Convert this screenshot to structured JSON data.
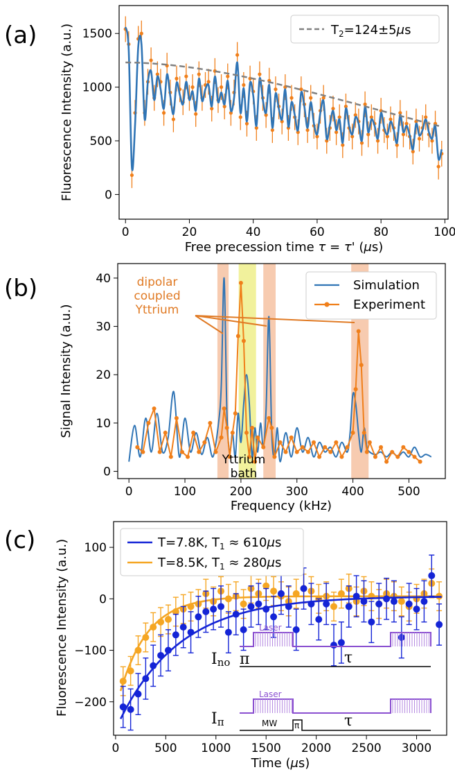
{
  "chart_data": [
    {
      "panel": "(a)",
      "type": "scatter",
      "xlabel": "Free precession time τ = τ' (μs)",
      "ylabel": "Fluorescence Intensity (a.u.)",
      "xlim": [
        -2,
        101
      ],
      "ylim": [
        -230,
        1760
      ],
      "xticks": [
        0,
        20,
        40,
        60,
        80,
        100
      ],
      "yticks": [
        0,
        500,
        1000,
        1500
      ],
      "legend": "top-right",
      "series": [
        {
          "name": "T2=124±5μs",
          "style": "dashed",
          "color": "#808080",
          "model": {
            "A": 1230,
            "T2": 124,
            "n": 1.8
          }
        },
        {
          "name": "",
          "style": "line",
          "color": "#2f74b5",
          "x": [
            0,
            1,
            2,
            3,
            4,
            5,
            6,
            7,
            8,
            9,
            10,
            11,
            12,
            13,
            14,
            15,
            16,
            17,
            18,
            19,
            20,
            21,
            22,
            23,
            24,
            25,
            26,
            27,
            28,
            29,
            30,
            31,
            32,
            33,
            34,
            35,
            36,
            37,
            38,
            39,
            40,
            41,
            42,
            43,
            44,
            45,
            46,
            47,
            48,
            49,
            50,
            51,
            52,
            53,
            54,
            55,
            56,
            57,
            58,
            59,
            60,
            61,
            62,
            63,
            64,
            65,
            66,
            67,
            68,
            69,
            70,
            71,
            72,
            73,
            74,
            75,
            76,
            77,
            78,
            79,
            80,
            81,
            82,
            83,
            84,
            85,
            86,
            87,
            88,
            89,
            90,
            91,
            92,
            93,
            94,
            95,
            96,
            97,
            98,
            99
          ],
          "y": [
            1560,
            1350,
            250,
            650,
            1380,
            1400,
            700,
            1050,
            1150,
            880,
            1100,
            980,
            800,
            1120,
            920,
            750,
            1040,
            930,
            840,
            1050,
            880,
            960,
            780,
            1080,
            870,
            980,
            1020,
            820,
            1100,
            860,
            950,
            840,
            1060,
            780,
            900,
            1230,
            760,
            990,
            680,
            1040,
            920,
            640,
            1080,
            880,
            760,
            1020,
            620,
            940,
            800,
            700,
            980,
            630,
            860,
            740,
            600,
            950,
            820,
            620,
            860,
            660,
            560,
            760,
            870,
            520,
            650,
            780,
            600,
            700,
            480,
            800,
            640,
            560,
            720,
            660,
            500,
            820,
            580,
            700,
            640,
            520,
            760,
            620,
            560,
            680,
            600,
            480,
            740,
            580,
            640,
            550,
            420,
            660,
            550,
            600,
            700,
            580,
            520,
            640,
            330,
            420
          ]
        }
      ],
      "points": {
        "name": "",
        "color": "#f07f1a",
        "x": [
          0,
          1,
          2,
          3,
          4,
          5,
          6,
          7,
          8,
          9,
          10,
          11,
          12,
          13,
          14,
          15,
          16,
          17,
          18,
          19,
          20,
          21,
          22,
          23,
          24,
          25,
          26,
          27,
          28,
          29,
          30,
          31,
          32,
          33,
          34,
          35,
          36,
          37,
          38,
          39,
          40,
          41,
          42,
          43,
          44,
          45,
          46,
          47,
          48,
          49,
          50,
          51,
          52,
          53,
          54,
          55,
          56,
          57,
          58,
          59,
          60,
          61,
          62,
          63,
          64,
          65,
          66,
          67,
          68,
          69,
          70,
          71,
          72,
          73,
          74,
          75,
          76,
          77,
          78,
          79,
          80,
          81,
          82,
          83,
          84,
          85,
          86,
          87,
          88,
          89,
          90,
          91,
          92,
          93,
          94,
          95,
          96,
          97,
          98,
          99
        ],
        "y": [
          1540,
          1400,
          180,
          760,
          1450,
          1500,
          760,
          1050,
          1250,
          900,
          1120,
          1050,
          760,
          1200,
          950,
          700,
          1080,
          980,
          860,
          1100,
          900,
          1000,
          750,
          1120,
          900,
          1020,
          1050,
          800,
          1150,
          880,
          1000,
          820,
          1100,
          760,
          950,
          1300,
          720,
          1020,
          660,
          1080,
          960,
          620,
          1120,
          900,
          740,
          1060,
          600,
          980,
          820,
          680,
          1000,
          620,
          900,
          720,
          580,
          980,
          840,
          600,
          900,
          640,
          540,
          780,
          900,
          500,
          620,
          800,
          580,
          720,
          460,
          820,
          620,
          540,
          740,
          680,
          480,
          840,
          560,
          720,
          660,
          500,
          780,
          600,
          540,
          700,
          620,
          460,
          760,
          560,
          660,
          540,
          400,
          680,
          520,
          620,
          720,
          560,
          500,
          660,
          260,
          380
        ],
        "yerr": 120
      }
    },
    {
      "panel": "(b)",
      "type": "line",
      "xlabel": "Frequency (kHz)",
      "ylabel": "Signal Intensity (a.u.)",
      "xlim": [
        -20,
        565
      ],
      "ylim": [
        -1.5,
        43
      ],
      "xticks": [
        0,
        100,
        200,
        300,
        400,
        500
      ],
      "yticks": [
        0,
        10,
        20,
        30,
        40
      ],
      "legend": "top-right",
      "bands": [
        {
          "x0": 158,
          "x1": 178,
          "color": "#f0a070"
        },
        {
          "x0": 196,
          "x1": 227,
          "color": "#e6e64a"
        },
        {
          "x0": 240,
          "x1": 262,
          "color": "#f0a070"
        },
        {
          "x0": 397,
          "x1": 428,
          "color": "#f0a070"
        }
      ],
      "annotations": [
        "dipolar",
        "coupled",
        "Yttrium",
        "Yttrium",
        "bath"
      ],
      "series": [
        {
          "name": "Simulation",
          "color": "#2f74b5",
          "x": [
            0,
            10,
            20,
            30,
            40,
            50,
            60,
            70,
            80,
            90,
            100,
            110,
            120,
            130,
            140,
            150,
            160,
            165,
            170,
            175,
            180,
            185,
            190,
            195,
            200,
            205,
            210,
            215,
            220,
            225,
            230,
            235,
            240,
            245,
            250,
            255,
            260,
            265,
            270,
            280,
            290,
            300,
            310,
            320,
            330,
            340,
            350,
            360,
            370,
            380,
            390,
            395,
            400,
            405,
            410,
            415,
            420,
            425,
            430,
            440,
            450,
            460,
            470,
            480,
            490,
            500,
            510,
            520,
            530,
            540
          ],
          "y": [
            2,
            9.5,
            3,
            11,
            4,
            12,
            4,
            7,
            16.5,
            3,
            11,
            4,
            8,
            3.5,
            7,
            3,
            10,
            18,
            40,
            12,
            4,
            8,
            3,
            12,
            6,
            14,
            20,
            14,
            3,
            9,
            4,
            10,
            5,
            13,
            32,
            8,
            3,
            9,
            2,
            8,
            3,
            9,
            4,
            7,
            3,
            6,
            4,
            5,
            3,
            6,
            4,
            8,
            16,
            14,
            8,
            4,
            9,
            5,
            4,
            3.5,
            4,
            3,
            4,
            3,
            4,
            3,
            5,
            3,
            3.5,
            3
          ]
        },
        {
          "name": "Experiment",
          "color": "#f07f1a",
          "x": [
            15,
            25,
            35,
            45,
            55,
            65,
            75,
            85,
            95,
            105,
            115,
            125,
            135,
            145,
            155,
            165,
            170,
            175,
            180,
            185,
            190,
            195,
            200,
            205,
            210,
            215,
            220,
            225,
            230,
            240,
            250,
            255,
            260,
            270,
            280,
            290,
            300,
            310,
            320,
            330,
            340,
            350,
            360,
            370,
            380,
            390,
            400,
            405,
            410,
            415,
            420,
            425,
            430,
            440,
            450,
            460,
            470,
            480,
            490,
            500,
            510,
            520
          ],
          "y": [
            5,
            4,
            10,
            13,
            4,
            8,
            3,
            11,
            4,
            3,
            8,
            4,
            6,
            10,
            4,
            7,
            13,
            9,
            3,
            8,
            12,
            28,
            39,
            27,
            8,
            3,
            9,
            2,
            7,
            5,
            11,
            9,
            3,
            6,
            4,
            7,
            4,
            5,
            4,
            6,
            3,
            5,
            4,
            6,
            3,
            5,
            8,
            17,
            29,
            22,
            8,
            4,
            6,
            3,
            5,
            2,
            4,
            3,
            5,
            4,
            3,
            2
          ]
        }
      ]
    },
    {
      "panel": "(c)",
      "type": "scatter",
      "xlabel": "Time (μs)",
      "ylabel": "Fluorescence Intensity (a.u.)",
      "xlim": [
        -20,
        3300
      ],
      "ylim": [
        -265,
        150
      ],
      "xticks": [
        0,
        500,
        1000,
        1500,
        2000,
        2500,
        3000
      ],
      "yticks": [
        -200,
        -100,
        0,
        100
      ],
      "legend": "top-left",
      "series": [
        {
          "name": "T=7.8K, T1≈610μs",
          "color": "#1424d6",
          "T1": 610,
          "A": -235,
          "off": 5,
          "x": [
            75,
            150,
            225,
            300,
            375,
            450,
            525,
            600,
            675,
            750,
            825,
            900,
            975,
            1050,
            1125,
            1200,
            1275,
            1350,
            1425,
            1500,
            1575,
            1650,
            1725,
            1800,
            1875,
            1950,
            2025,
            2100,
            2175,
            2250,
            2325,
            2400,
            2475,
            2550,
            2625,
            2700,
            2775,
            2850,
            2925,
            3000,
            3075,
            3150,
            3225
          ],
          "y": [
            -210,
            -215,
            -185,
            -155,
            -130,
            -110,
            -100,
            -70,
            -55,
            -65,
            -35,
            -25,
            -20,
            -15,
            -65,
            -30,
            -60,
            -15,
            -10,
            -20,
            -35,
            10,
            -15,
            -60,
            20,
            -10,
            -40,
            -10,
            -90,
            -85,
            -15,
            5,
            -5,
            -45,
            -10,
            0,
            -5,
            -75,
            -10,
            -20,
            -5,
            45,
            -50
          ],
          "yerr": 40
        },
        {
          "name": "T=8.5K, T1≈280μs",
          "color": "#f5a623",
          "T1": 280,
          "A": -200,
          "off": 5,
          "x": [
            75,
            150,
            225,
            300,
            375,
            450,
            525,
            600,
            675,
            750,
            825,
            900,
            975,
            1050,
            1125,
            1200,
            1275,
            1350,
            1425,
            1500,
            1575,
            1650,
            1725,
            1800,
            1875,
            1950,
            2025,
            2100,
            2175,
            2250,
            2325,
            2400,
            2475,
            2550,
            2625,
            2700,
            2775,
            2850,
            2925,
            3000,
            3075,
            3150,
            3225
          ],
          "y": [
            -160,
            -140,
            -100,
            -75,
            -55,
            -45,
            -40,
            -25,
            -20,
            -15,
            -10,
            10,
            -5,
            15,
            0,
            5,
            -10,
            20,
            10,
            25,
            15,
            5,
            -5,
            10,
            20,
            15,
            0,
            5,
            -15,
            10,
            20,
            -5,
            15,
            5,
            -10,
            10,
            5,
            -5,
            -15,
            0,
            10,
            30,
            5
          ],
          "yerr": 28
        }
      ],
      "inset": {
        "row1": {
          "label": "I",
          "sub": "no",
          "pulse": "π",
          "tau": "τ",
          "laser": "Laser"
        },
        "row2": {
          "label": "I",
          "sub": "π",
          "pulse": "π",
          "mw": "MW",
          "tau": "τ",
          "laser": "Laser"
        }
      }
    }
  ],
  "panels": [
    "(a)",
    "(b)",
    "(c)"
  ]
}
